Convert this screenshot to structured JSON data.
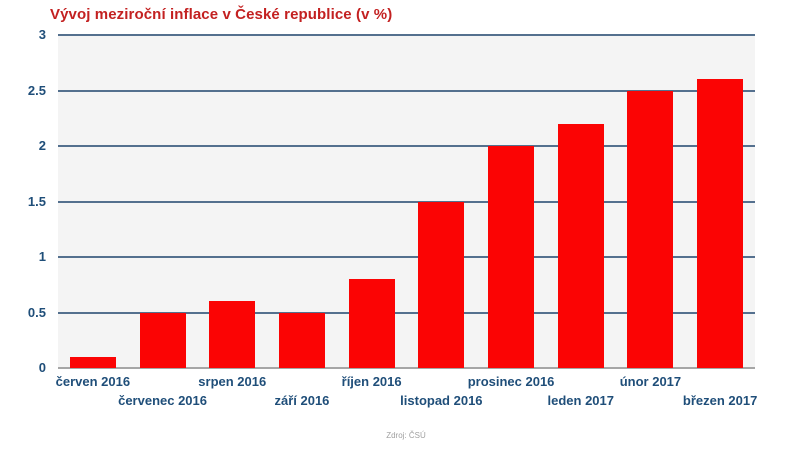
{
  "title": "Vývoj meziroční inflace v České republice (v %)",
  "source": "Zdroj: ČSÚ",
  "colors": {
    "title_red": "#c32121",
    "bar_red": "#fb0404",
    "axis_label_blue": "#1f4e79",
    "gridline_slate": "#54708e",
    "baseline_gray": "#a6a6a6",
    "plot_background": "#f4f4f4",
    "source_gray": "#a0a0a0",
    "page_background": "#ffffff"
  },
  "chart_data": {
    "type": "bar",
    "title": "Vývoj meziroční inflace v České republice (v %)",
    "categories": [
      "červen 2016",
      "červenec 2016",
      "srpen 2016",
      "září 2016",
      "říjen 2016",
      "listopad 2016",
      "prosinec 2016",
      "leden 2017",
      "únor 2017",
      "březen 2017"
    ],
    "values": [
      0.1,
      0.5,
      0.6,
      0.5,
      0.8,
      1.5,
      2.0,
      2.2,
      2.5,
      2.6
    ],
    "xlabel": "",
    "ylabel": "",
    "ylim": [
      0,
      3
    ],
    "ytick_values": [
      3,
      2.5,
      2,
      1.5,
      1,
      0.5,
      0
    ],
    "ytick_labels": [
      "3",
      "2.5",
      "2",
      "1.5",
      "1",
      "0.5",
      "0"
    ],
    "grid": true,
    "legend": false,
    "xtick_label_rows": "alternating",
    "source_note": "Zdroj: ČSÚ"
  }
}
